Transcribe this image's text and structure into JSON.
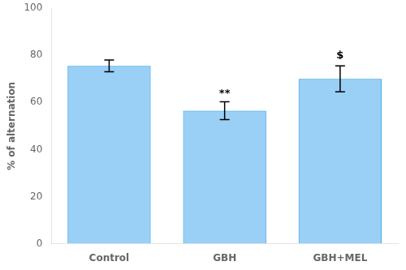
{
  "chart_data": {
    "type": "bar",
    "categories": [
      "Control",
      "GBH",
      "GBH+MEL"
    ],
    "values": [
      75.5,
      56.5,
      70.0
    ],
    "errors": [
      2.5,
      3.8,
      5.5
    ],
    "ylabel": "% of alternation",
    "ylim": [
      0,
      100
    ],
    "yticks": [
      0,
      20,
      40,
      60,
      80,
      100
    ],
    "grid": false,
    "annotations": [
      {
        "text": "**",
        "x": "GBH",
        "y": 61.5
      },
      {
        "text": "$",
        "x": "GBH+MEL",
        "y": 77.5
      }
    ]
  }
}
